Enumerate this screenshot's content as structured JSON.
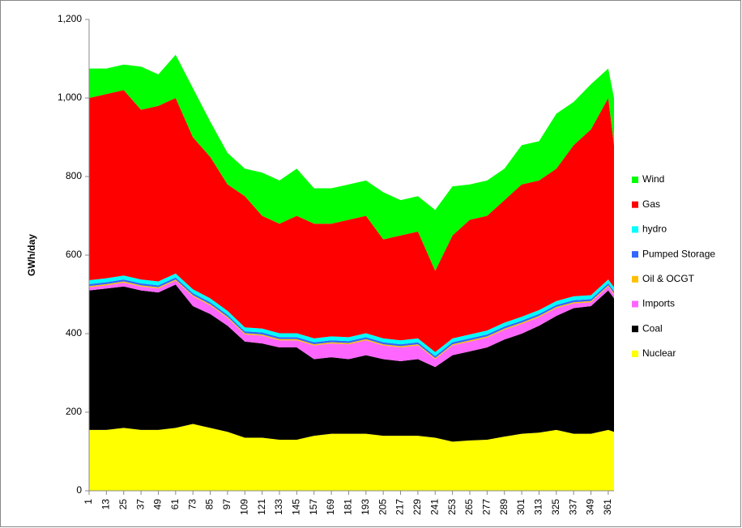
{
  "chart_data": {
    "type": "stacked_area",
    "y_label": "GWh/day",
    "x": [
      1,
      13,
      25,
      37,
      49,
      61,
      73,
      85,
      97,
      109,
      121,
      133,
      145,
      157,
      169,
      181,
      193,
      205,
      217,
      229,
      241,
      253,
      265,
      277,
      289,
      301,
      313,
      325,
      337,
      349,
      361,
      365
    ],
    "xlim": [
      1,
      365
    ],
    "xticks": [
      1,
      13,
      25,
      37,
      49,
      61,
      73,
      85,
      97,
      109,
      121,
      133,
      145,
      157,
      169,
      181,
      193,
      205,
      217,
      229,
      241,
      253,
      265,
      277,
      289,
      301,
      313,
      325,
      337,
      349,
      361
    ],
    "ylim": [
      0,
      1200
    ],
    "yticks": [
      0,
      200,
      400,
      600,
      800,
      {
        "value": 1000,
        "label": "1,000"
      },
      {
        "value": 1200,
        "label": "1,200"
      }
    ],
    "series": [
      {
        "name": "Nuclear",
        "color": "#ffff00",
        "values": [
          155,
          155,
          160,
          155,
          155,
          160,
          170,
          160,
          150,
          135,
          135,
          130,
          130,
          140,
          145,
          145,
          145,
          140,
          140,
          140,
          135,
          125,
          128,
          130,
          138,
          145,
          148,
          155,
          145,
          145,
          155,
          150
        ]
      },
      {
        "name": "Coal",
        "color": "#000000",
        "values": [
          355,
          360,
          360,
          355,
          350,
          365,
          300,
          290,
          270,
          245,
          240,
          235,
          235,
          195,
          195,
          190,
          200,
          195,
          190,
          195,
          180,
          220,
          227,
          235,
          247,
          255,
          272,
          290,
          320,
          325,
          355,
          340
        ]
      },
      {
        "name": "Imports",
        "color": "#ff66ff",
        "values": [
          8,
          8,
          10,
          10,
          10,
          10,
          25,
          22,
          20,
          18,
          20,
          18,
          18,
          35,
          35,
          38,
          38,
          35,
          35,
          35,
          20,
          25,
          25,
          25,
          25,
          25,
          22,
          20,
          12,
          10,
          10,
          10
        ]
      },
      {
        "name": "Oil & OCGT",
        "color": "#ffc000",
        "values": [
          3,
          3,
          3,
          3,
          3,
          3,
          3,
          3,
          3,
          3,
          3,
          3,
          3,
          3,
          3,
          3,
          3,
          3,
          3,
          3,
          3,
          3,
          3,
          3,
          3,
          3,
          3,
          3,
          3,
          3,
          3,
          3
        ]
      },
      {
        "name": "Pumped Storage",
        "color": "#3366ff",
        "values": [
          5,
          5,
          5,
          5,
          5,
          5,
          5,
          5,
          5,
          5,
          5,
          5,
          5,
          5,
          5,
          5,
          5,
          5,
          5,
          5,
          5,
          5,
          5,
          5,
          5,
          5,
          5,
          5,
          5,
          5,
          5,
          5
        ]
      },
      {
        "name": "hydro",
        "color": "#00ffff",
        "values": [
          10,
          10,
          10,
          10,
          10,
          10,
          10,
          10,
          10,
          10,
          10,
          10,
          10,
          10,
          10,
          10,
          10,
          10,
          10,
          10,
          10,
          10,
          10,
          10,
          10,
          10,
          10,
          10,
          10,
          10,
          10,
          10
        ]
      },
      {
        "name": "Gas",
        "color": "#ff0000",
        "values": [
          464,
          469,
          472,
          432,
          447,
          447,
          387,
          360,
          322,
          334,
          287,
          279,
          299,
          292,
          287,
          299,
          299,
          252,
          267,
          272,
          207,
          262,
          292,
          292,
          312,
          337,
          330,
          337,
          385,
          422,
          462,
          362
        ]
      },
      {
        "name": "Wind",
        "color": "#00ff00",
        "values": [
          75,
          65,
          65,
          110,
          80,
          110,
          125,
          90,
          80,
          70,
          110,
          110,
          120,
          90,
          90,
          90,
          90,
          120,
          90,
          90,
          155,
          125,
          90,
          90,
          80,
          100,
          100,
          140,
          110,
          115,
          75,
          120
        ]
      }
    ]
  }
}
